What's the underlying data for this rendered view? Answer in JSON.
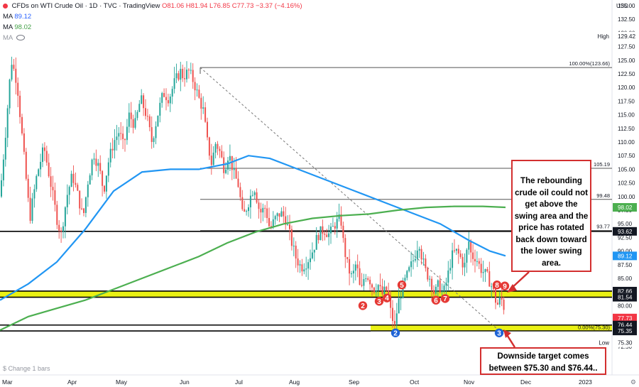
{
  "header": {
    "symbol": "CFDs on WTI Crude Oil · 1D · TVC · TradingView",
    "ohlc": "O81.06 H81.94 L76.85 C77.73 −3.37 (−4.16%)",
    "ma1_label": "MA",
    "ma1_value": "89.12",
    "ma2_label": "MA",
    "ma2_value": "98.02",
    "ma3_label": "MA"
  },
  "change_label": "$ Change 1 bars",
  "currency": "USD",
  "time_settings_icon": "gear-icon",
  "colors": {
    "up": "#26a69a",
    "down": "#ef5350",
    "ma_fast": "#2196f3",
    "ma_slow": "#4caf50",
    "zone": "#e8f000",
    "callout_border": "#d32f2f",
    "marker_red": "#e53935",
    "marker_blue": "#1e63d6"
  },
  "callouts": {
    "main": "The rebounding crude oil could not get above the swing area and the price has rotated back down toward the lower swing area.",
    "target": "Downside target comes between $75.30 and $76.44.."
  },
  "chart_data": {
    "type": "candlestick",
    "xlabels": [
      "Mar",
      "Apr",
      "May",
      "Jun",
      "Jul",
      "Aug",
      "Sep",
      "Oct",
      "Nov",
      "Dec",
      "2023"
    ],
    "yticks": [
      72.5,
      75,
      77.5,
      80,
      82.5,
      85,
      87.5,
      90,
      92.5,
      95,
      97.5,
      100,
      102.5,
      105,
      107.5,
      110,
      112.5,
      115,
      117.5,
      120,
      122.5,
      125,
      127.5,
      130,
      132.5,
      135
    ],
    "ylim": [
      71.5,
      136.5
    ],
    "approximate_close_path": [
      [
        0,
        100
      ],
      [
        8,
        112
      ],
      [
        16,
        125
      ],
      [
        24,
        121
      ],
      [
        34,
        107
      ],
      [
        42,
        96
      ],
      [
        52,
        104
      ],
      [
        62,
        109
      ],
      [
        72,
        102
      ],
      [
        80,
        96
      ],
      [
        86,
        93
      ],
      [
        94,
        100
      ],
      [
        102,
        104
      ],
      [
        110,
        100
      ],
      [
        117,
        96
      ],
      [
        124,
        103
      ],
      [
        132,
        108
      ],
      [
        140,
        105
      ],
      [
        146,
        101
      ],
      [
        152,
        106
      ],
      [
        160,
        110
      ],
      [
        168,
        112
      ],
      [
        174,
        109
      ],
      [
        182,
        115
      ],
      [
        190,
        113
      ],
      [
        198,
        118
      ],
      [
        206,
        115
      ],
      [
        214,
        110
      ],
      [
        222,
        115
      ],
      [
        230,
        119
      ],
      [
        238,
        118
      ],
      [
        246,
        121
      ],
      [
        254,
        123
      ],
      [
        258,
        122
      ],
      [
        266,
        123
      ],
      [
        273,
        121
      ],
      [
        280,
        118
      ],
      [
        286,
        116
      ],
      [
        292,
        110
      ],
      [
        298,
        106
      ],
      [
        304,
        110
      ],
      [
        310,
        108
      ],
      [
        316,
        105
      ],
      [
        322,
        108
      ],
      [
        330,
        104
      ],
      [
        336,
        102
      ],
      [
        342,
        96
      ],
      [
        350,
        99
      ],
      [
        358,
        102
      ],
      [
        366,
        97
      ],
      [
        374,
        98
      ],
      [
        380,
        94
      ],
      [
        388,
        96
      ],
      [
        395,
        97
      ],
      [
        402,
        96
      ],
      [
        410,
        92
      ],
      [
        416,
        89
      ],
      [
        424,
        87
      ],
      [
        432,
        88
      ],
      [
        440,
        90
      ],
      [
        448,
        93
      ],
      [
        456,
        94
      ],
      [
        464,
        93
      ],
      [
        472,
        95
      ],
      [
        480,
        96
      ],
      [
        484,
        91
      ],
      [
        490,
        87
      ],
      [
        496,
        85
      ],
      [
        502,
        88
      ],
      [
        508,
        82
      ],
      [
        514,
        86
      ],
      [
        520,
        85
      ],
      [
        526,
        83
      ],
      [
        532,
        84
      ],
      [
        538,
        82
      ],
      [
        544,
        83
      ],
      [
        550,
        79
      ],
      [
        556,
        76
      ],
      [
        560,
        80
      ],
      [
        566,
        83
      ],
      [
        572,
        85
      ],
      [
        578,
        87
      ],
      [
        584,
        89
      ],
      [
        590,
        92
      ],
      [
        594,
        89
      ],
      [
        600,
        86
      ],
      [
        606,
        85
      ],
      [
        612,
        82
      ],
      [
        618,
        84
      ],
      [
        624,
        82
      ],
      [
        630,
        85
      ],
      [
        636,
        89
      ],
      [
        642,
        90
      ],
      [
        648,
        89
      ],
      [
        654,
        87
      ],
      [
        660,
        92
      ],
      [
        664,
        89
      ],
      [
        670,
        89
      ],
      [
        676,
        87
      ],
      [
        682,
        86
      ],
      [
        688,
        85
      ],
      [
        694,
        83
      ],
      [
        700,
        80
      ],
      [
        704,
        81
      ],
      [
        708,
        81
      ],
      [
        712,
        78
      ]
    ],
    "ma_fast_path": [
      [
        0,
        81
      ],
      [
        40,
        84
      ],
      [
        80,
        88
      ],
      [
        120,
        94
      ],
      [
        160,
        101
      ],
      [
        200,
        104.5
      ],
      [
        240,
        105
      ],
      [
        280,
        105
      ],
      [
        320,
        106
      ],
      [
        350,
        107.5
      ],
      [
        380,
        107
      ],
      [
        420,
        105
      ],
      [
        460,
        103
      ],
      [
        500,
        101
      ],
      [
        540,
        99
      ],
      [
        580,
        97
      ],
      [
        620,
        95
      ],
      [
        640,
        93.5
      ],
      [
        660,
        92
      ],
      [
        690,
        90
      ],
      [
        712,
        89.12
      ]
    ],
    "ma_slow_path": [
      [
        0,
        75.5
      ],
      [
        40,
        78
      ],
      [
        80,
        79.5
      ],
      [
        120,
        81
      ],
      [
        160,
        83
      ],
      [
        200,
        85
      ],
      [
        240,
        87
      ],
      [
        280,
        89
      ],
      [
        320,
        91.5
      ],
      [
        360,
        93.5
      ],
      [
        400,
        95
      ],
      [
        440,
        96
      ],
      [
        480,
        96.5
      ],
      [
        520,
        96.8
      ],
      [
        560,
        97.5
      ],
      [
        600,
        98
      ],
      [
        640,
        98.2
      ],
      [
        680,
        98.2
      ],
      [
        712,
        98.02
      ]
    ],
    "levels": [
      {
        "label": "100.00%(123.66)",
        "price": 123.66,
        "x_start": 282
      },
      {
        "label": "105.19",
        "price": 105.19,
        "x_start": 282
      },
      {
        "label": "99.48",
        "price": 99.48,
        "x_start": 282
      },
      {
        "label": "93.77",
        "price": 93.77,
        "x_start": 282
      },
      {
        "label": "0.00%(75.30)",
        "price": 75.3,
        "x_start": 522
      }
    ],
    "horizontal_lines": [
      93.62,
      82.66,
      81.54,
      76.44,
      75.35
    ],
    "zones": [
      {
        "from": 81.54,
        "to": 82.66,
        "x_start": 0
      },
      {
        "from": 75.35,
        "to": 76.44,
        "x_start": 522
      }
    ],
    "trendline": {
      "from": [
        282,
        123.66
      ],
      "to": [
        704,
        75.3
      ]
    },
    "price_labels": [
      {
        "text": "High",
        "price": 129.42,
        "style": "label"
      },
      {
        "text": "129.42",
        "price": 129.42,
        "style": "grey"
      },
      {
        "text": "98.02",
        "price": 98.02,
        "style": "green"
      },
      {
        "text": "93.62",
        "price": 93.62,
        "style": "black"
      },
      {
        "text": "89.12",
        "price": 89.12,
        "style": "blue"
      },
      {
        "text": "82.66",
        "price": 82.66,
        "style": "black"
      },
      {
        "text": "81.54",
        "price": 81.54,
        "style": "black"
      },
      {
        "text": "77.73",
        "price": 77.73,
        "style": "red"
      },
      {
        "text": "76.44",
        "price": 76.44,
        "style": "black"
      },
      {
        "text": "75.35",
        "price": 75.35,
        "style": "black"
      },
      {
        "text": "Low",
        "price": 73.2,
        "style": "label"
      },
      {
        "text": "75.30",
        "price": 73.2,
        "style": "grey"
      }
    ],
    "markers": [
      {
        "text": "2",
        "x": 511,
        "price": 80.0,
        "color": "red"
      },
      {
        "text": "3",
        "x": 534,
        "price": 80.8,
        "color": "red"
      },
      {
        "text": "4",
        "x": 545,
        "price": 81.4,
        "color": "red"
      },
      {
        "text": "5",
        "x": 566,
        "price": 83.8,
        "color": "red"
      },
      {
        "text": "6",
        "x": 614,
        "price": 81.0,
        "color": "red"
      },
      {
        "text": "7",
        "x": 627,
        "price": 81.3,
        "color": "red"
      },
      {
        "text": "8",
        "x": 700,
        "price": 83.8,
        "color": "red"
      },
      {
        "text": "9",
        "x": 711,
        "price": 83.6,
        "color": "red"
      },
      {
        "text": "2",
        "x": 557,
        "price": 75.0,
        "color": "blue"
      },
      {
        "text": "3",
        "x": 703,
        "price": 75.0,
        "color": "blue"
      }
    ]
  }
}
